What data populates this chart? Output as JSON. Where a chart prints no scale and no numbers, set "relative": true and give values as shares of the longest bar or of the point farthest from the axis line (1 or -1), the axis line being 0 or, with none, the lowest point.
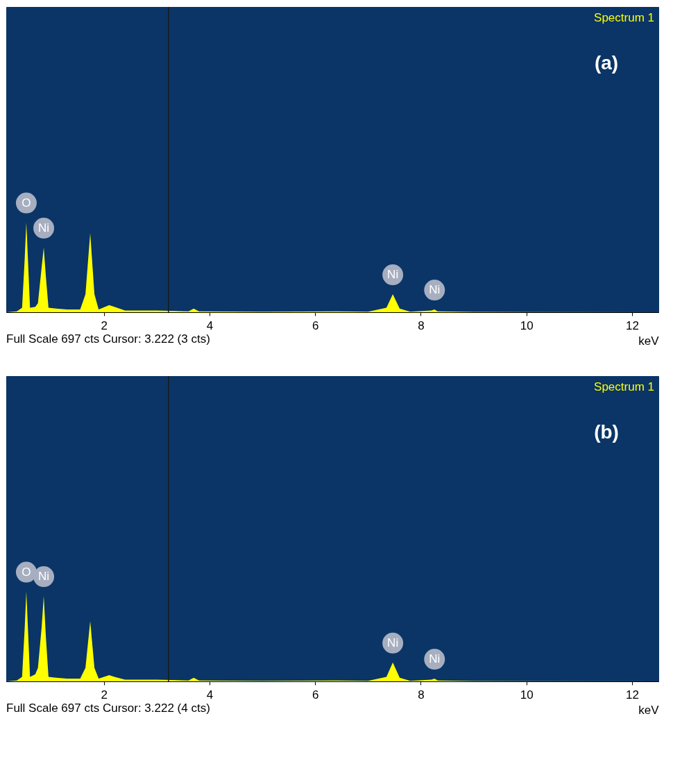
{
  "chart_data": [
    {
      "type": "area",
      "title": "(a)",
      "subtitle": "Spectrum 1",
      "xlabel": "keV",
      "relative": true,
      "xlim": [
        0.15,
        12.5
      ],
      "xticks": [
        2,
        4,
        6,
        8,
        10,
        12
      ],
      "grid": false,
      "series": [
        {
          "color": "#ffff00",
          "x": [
            0.15,
            0.35,
            0.45,
            0.5,
            0.53,
            0.56,
            0.6,
            0.7,
            0.75,
            0.82,
            0.86,
            0.9,
            0.95,
            1.1,
            1.3,
            1.55,
            1.65,
            1.74,
            1.82,
            1.9,
            2.1,
            2.2,
            2.4,
            3.0,
            3.6,
            3.7,
            3.8,
            5.0,
            6.4,
            7.0,
            7.35,
            7.47,
            7.6,
            7.8,
            8.2,
            8.26,
            8.32,
            9.0,
            12.5
          ],
          "values": [
            0,
            0.01,
            0.05,
            0.6,
            1,
            0.6,
            0.05,
            0.06,
            0.1,
            0.5,
            0.72,
            0.4,
            0.05,
            0.04,
            0.03,
            0.03,
            0.2,
            0.88,
            0.2,
            0.03,
            0.08,
            0.06,
            0.02,
            0.02,
            0.01,
            0.04,
            0.01,
            0.005,
            0.01,
            0.005,
            0.05,
            0.2,
            0.04,
            0.005,
            0.02,
            0.03,
            0.01,
            0.003,
            0
          ]
        }
      ],
      "ref_lines": [
        {
          "axis": "x",
          "value": 3.222,
          "color": "#1a1a1a"
        }
      ],
      "annotations": [
        {
          "text": "O",
          "x": 0.53,
          "y": 1
        },
        {
          "text": "Ni",
          "x": 0.86,
          "y": 0.72
        },
        {
          "text": "Ni",
          "x": 7.47,
          "y": 0.2
        },
        {
          "text": "Ni",
          "x": 8.26,
          "y": 0.03
        },
        "Full Scale 697 cts Cursor: 3.222  (3 cts)"
      ]
    },
    {
      "type": "area",
      "title": "(b)",
      "subtitle": "Spectrum 1",
      "xlabel": "keV",
      "relative": true,
      "xlim": [
        0.15,
        12.5
      ],
      "xticks": [
        2,
        4,
        6,
        8,
        10,
        12
      ],
      "grid": false,
      "series": [
        {
          "color": "#ffff00",
          "x": [
            0.15,
            0.35,
            0.45,
            0.5,
            0.53,
            0.56,
            0.6,
            0.7,
            0.75,
            0.82,
            0.86,
            0.9,
            0.95,
            1.1,
            1.3,
            1.55,
            1.65,
            1.74,
            1.82,
            1.9,
            2.1,
            2.2,
            2.4,
            3.0,
            3.6,
            3.7,
            3.8,
            5.0,
            6.4,
            7.0,
            7.35,
            7.47,
            7.6,
            7.8,
            8.2,
            8.26,
            8.32,
            9.0,
            12.5
          ],
          "values": [
            0,
            0.01,
            0.05,
            0.6,
            1,
            0.6,
            0.05,
            0.08,
            0.15,
            0.6,
            0.95,
            0.5,
            0.05,
            0.04,
            0.03,
            0.03,
            0.15,
            0.67,
            0.15,
            0.03,
            0.07,
            0.05,
            0.02,
            0.02,
            0.01,
            0.04,
            0.01,
            0.005,
            0.01,
            0.005,
            0.05,
            0.21,
            0.04,
            0.005,
            0.02,
            0.03,
            0.01,
            0.003,
            0
          ]
        }
      ],
      "ref_lines": [
        {
          "axis": "x",
          "value": 3.222,
          "color": "#1a1a1a"
        }
      ],
      "annotations": [
        {
          "text": "O",
          "x": 0.53,
          "y": 1
        },
        {
          "text": "Ni",
          "x": 0.86,
          "y": 0.95
        },
        {
          "text": "Ni",
          "x": 7.47,
          "y": 0.21
        },
        {
          "text": "Ni",
          "x": 8.26,
          "y": 0.03
        },
        "Full Scale 697 cts Cursor: 3.222  (4 cts)"
      ]
    }
  ]
}
